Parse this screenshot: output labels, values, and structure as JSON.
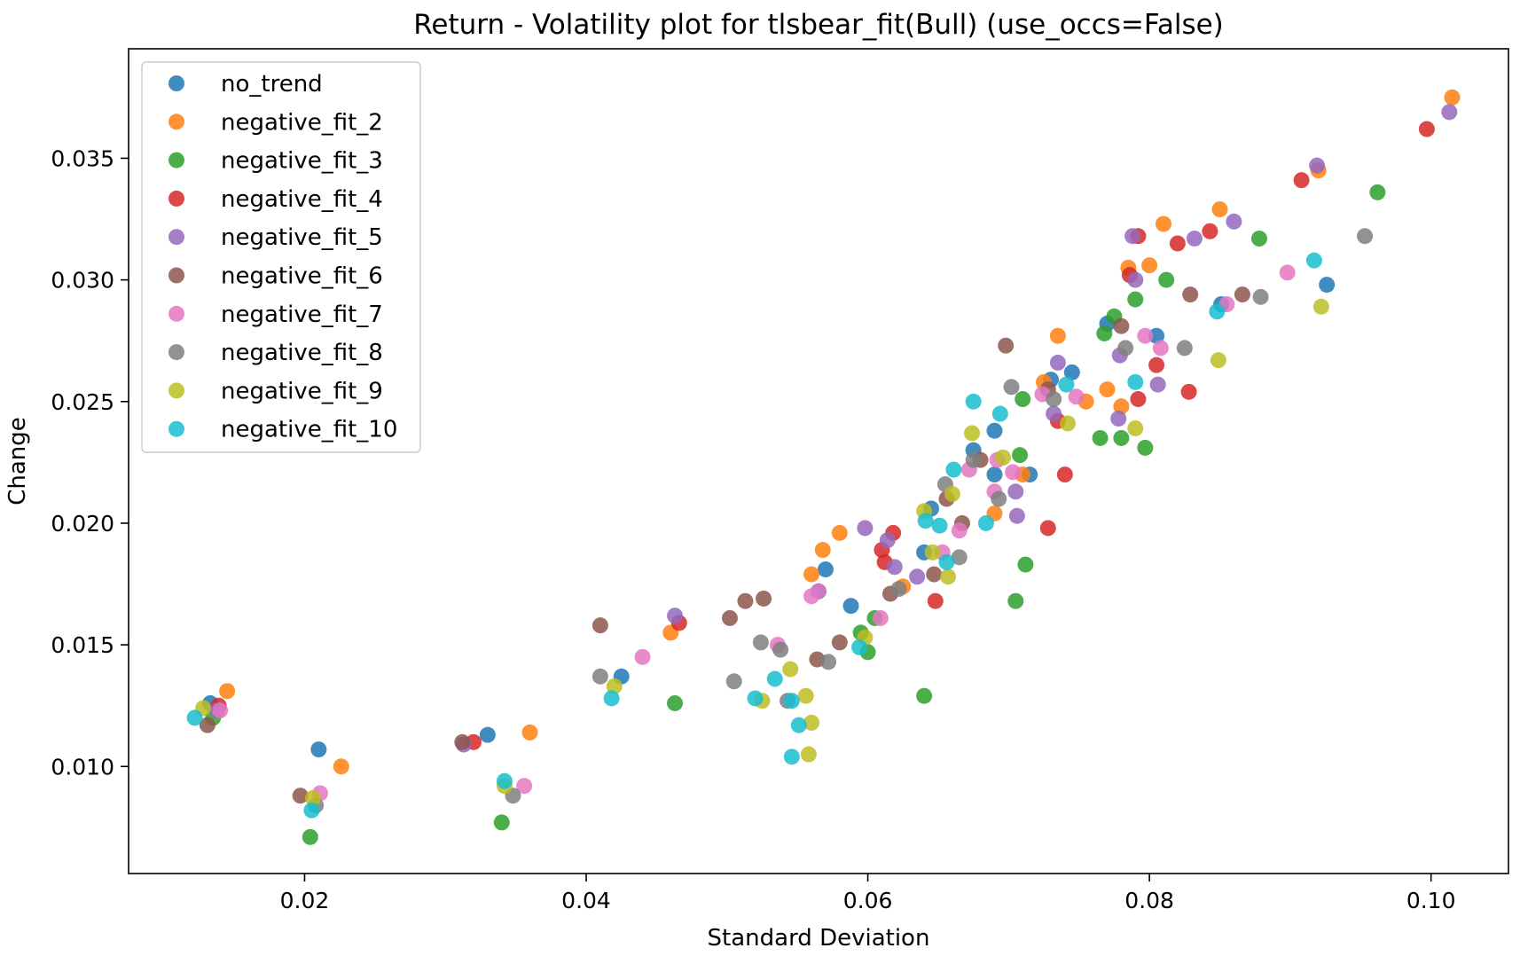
{
  "chart_data": {
    "type": "scatter",
    "title": "Return - Volatility plot for tlsbear_fit(Bull) (use_occs=False)",
    "xlabel": "Standard Deviation",
    "ylabel": "Change",
    "xlim": [
      0.0075,
      0.1055
    ],
    "ylim": [
      0.0056,
      0.0395
    ],
    "x_ticks": [
      0.02,
      0.04,
      0.06,
      0.08,
      0.1
    ],
    "x_tick_labels": [
      "0.02",
      "0.04",
      "0.06",
      "0.08",
      "0.10"
    ],
    "y_ticks": [
      0.01,
      0.015,
      0.02,
      0.025,
      0.03,
      0.035
    ],
    "y_tick_labels": [
      "0.010",
      "0.015",
      "0.020",
      "0.025",
      "0.030",
      "0.035"
    ],
    "grid": false,
    "legend_position": "upper-left",
    "series": [
      {
        "name": "no_trend",
        "color": "#1f77b4",
        "points": [
          [
            0.0133,
            0.0126
          ],
          [
            0.021,
            0.0107
          ],
          [
            0.033,
            0.0113
          ],
          [
            0.0425,
            0.0137
          ],
          [
            0.057,
            0.0181
          ],
          [
            0.0588,
            0.0166
          ],
          [
            0.0645,
            0.0206
          ],
          [
            0.0675,
            0.023
          ],
          [
            0.069,
            0.022
          ],
          [
            0.0715,
            0.022
          ],
          [
            0.073,
            0.0259
          ],
          [
            0.0745,
            0.0262
          ],
          [
            0.077,
            0.0282
          ],
          [
            0.0805,
            0.0277
          ],
          [
            0.0851,
            0.029
          ],
          [
            0.0926,
            0.0298
          ],
          [
            0.064,
            0.0188
          ],
          [
            0.069,
            0.0238
          ],
          [
            0.0565,
            0.0172
          ]
        ]
      },
      {
        "name": "negative_fit_2",
        "color": "#ff7f0e",
        "points": [
          [
            0.0145,
            0.0131
          ],
          [
            0.0226,
            0.01
          ],
          [
            0.036,
            0.0114
          ],
          [
            0.046,
            0.0155
          ],
          [
            0.056,
            0.0179
          ],
          [
            0.0568,
            0.0189
          ],
          [
            0.058,
            0.0196
          ],
          [
            0.0625,
            0.0174
          ],
          [
            0.069,
            0.0204
          ],
          [
            0.071,
            0.022
          ],
          [
            0.0725,
            0.0258
          ],
          [
            0.0735,
            0.0277
          ],
          [
            0.0755,
            0.025
          ],
          [
            0.077,
            0.0255
          ],
          [
            0.078,
            0.0248
          ],
          [
            0.0785,
            0.0305
          ],
          [
            0.08,
            0.0306
          ],
          [
            0.081,
            0.0323
          ],
          [
            0.085,
            0.0329
          ],
          [
            0.092,
            0.0345
          ],
          [
            0.1015,
            0.0375
          ]
        ]
      },
      {
        "name": "negative_fit_3",
        "color": "#2ca02c",
        "points": [
          [
            0.0135,
            0.012
          ],
          [
            0.0204,
            0.0071
          ],
          [
            0.034,
            0.0077
          ],
          [
            0.0463,
            0.0126
          ],
          [
            0.0605,
            0.0161
          ],
          [
            0.0595,
            0.0155
          ],
          [
            0.06,
            0.0147
          ],
          [
            0.064,
            0.0129
          ],
          [
            0.0705,
            0.0168
          ],
          [
            0.0712,
            0.0183
          ],
          [
            0.0708,
            0.0228
          ],
          [
            0.071,
            0.0251
          ],
          [
            0.0765,
            0.0235
          ],
          [
            0.0775,
            0.0285
          ],
          [
            0.078,
            0.0235
          ],
          [
            0.079,
            0.0292
          ],
          [
            0.0797,
            0.0231
          ],
          [
            0.0812,
            0.03
          ],
          [
            0.0878,
            0.0317
          ],
          [
            0.0962,
            0.0336
          ],
          [
            0.0768,
            0.0278
          ]
        ]
      },
      {
        "name": "negative_fit_4",
        "color": "#d62728",
        "points": [
          [
            0.0139,
            0.0125
          ],
          [
            0.032,
            0.011
          ],
          [
            0.0466,
            0.0159
          ],
          [
            0.061,
            0.0189
          ],
          [
            0.0618,
            0.0196
          ],
          [
            0.0612,
            0.0184
          ],
          [
            0.0648,
            0.0168
          ],
          [
            0.0728,
            0.0198
          ],
          [
            0.0735,
            0.0242
          ],
          [
            0.074,
            0.022
          ],
          [
            0.0786,
            0.0302
          ],
          [
            0.0792,
            0.0251
          ],
          [
            0.0792,
            0.0318
          ],
          [
            0.0805,
            0.0265
          ],
          [
            0.082,
            0.0315
          ],
          [
            0.0828,
            0.0254
          ],
          [
            0.0843,
            0.032
          ],
          [
            0.0908,
            0.0341
          ],
          [
            0.0997,
            0.0362
          ]
        ]
      },
      {
        "name": "negative_fit_5",
        "color": "#9467bd",
        "points": [
          [
            0.0138,
            0.0123
          ],
          [
            0.0313,
            0.0109
          ],
          [
            0.0463,
            0.0162
          ],
          [
            0.0598,
            0.0198
          ],
          [
            0.0614,
            0.0193
          ],
          [
            0.0619,
            0.0182
          ],
          [
            0.0635,
            0.0178
          ],
          [
            0.0705,
            0.0213
          ],
          [
            0.0706,
            0.0203
          ],
          [
            0.0732,
            0.0245
          ],
          [
            0.0735,
            0.0266
          ],
          [
            0.0778,
            0.0243
          ],
          [
            0.0779,
            0.0269
          ],
          [
            0.0788,
            0.0318
          ],
          [
            0.079,
            0.03
          ],
          [
            0.0806,
            0.0257
          ],
          [
            0.0832,
            0.0317
          ],
          [
            0.086,
            0.0324
          ],
          [
            0.0919,
            0.0347
          ],
          [
            0.1013,
            0.0369
          ]
        ]
      },
      {
        "name": "negative_fit_6",
        "color": "#8c564b",
        "points": [
          [
            0.0131,
            0.0117
          ],
          [
            0.0197,
            0.0088
          ],
          [
            0.0312,
            0.011
          ],
          [
            0.041,
            0.0158
          ],
          [
            0.0502,
            0.0161
          ],
          [
            0.0513,
            0.0168
          ],
          [
            0.0526,
            0.0169
          ],
          [
            0.0564,
            0.0144
          ],
          [
            0.058,
            0.0151
          ],
          [
            0.0616,
            0.0171
          ],
          [
            0.0647,
            0.0179
          ],
          [
            0.0656,
            0.021
          ],
          [
            0.0667,
            0.02
          ],
          [
            0.068,
            0.0226
          ],
          [
            0.0698,
            0.0273
          ],
          [
            0.0728,
            0.0255
          ],
          [
            0.078,
            0.0281
          ],
          [
            0.0829,
            0.0294
          ],
          [
            0.0866,
            0.0294
          ]
        ]
      },
      {
        "name": "negative_fit_7",
        "color": "#e377c2",
        "points": [
          [
            0.014,
            0.0123
          ],
          [
            0.0211,
            0.0089
          ],
          [
            0.0356,
            0.0092
          ],
          [
            0.044,
            0.0145
          ],
          [
            0.0536,
            0.015
          ],
          [
            0.056,
            0.017
          ],
          [
            0.0565,
            0.0172
          ],
          [
            0.0609,
            0.0161
          ],
          [
            0.0653,
            0.0188
          ],
          [
            0.0665,
            0.0197
          ],
          [
            0.0672,
            0.0222
          ],
          [
            0.069,
            0.0213
          ],
          [
            0.0692,
            0.0226
          ],
          [
            0.0703,
            0.0221
          ],
          [
            0.0724,
            0.0253
          ],
          [
            0.0748,
            0.0252
          ],
          [
            0.0797,
            0.0277
          ],
          [
            0.0808,
            0.0272
          ],
          [
            0.0855,
            0.029
          ],
          [
            0.0898,
            0.0303
          ]
        ]
      },
      {
        "name": "negative_fit_8",
        "color": "#7f7f7f",
        "points": [
          [
            0.0208,
            0.0084
          ],
          [
            0.0348,
            0.0088
          ],
          [
            0.041,
            0.0137
          ],
          [
            0.0505,
            0.0135
          ],
          [
            0.0524,
            0.0151
          ],
          [
            0.0538,
            0.0148
          ],
          [
            0.0543,
            0.0127
          ],
          [
            0.0572,
            0.0143
          ],
          [
            0.0622,
            0.0173
          ],
          [
            0.0655,
            0.0216
          ],
          [
            0.0665,
            0.0186
          ],
          [
            0.0675,
            0.0226
          ],
          [
            0.0693,
            0.021
          ],
          [
            0.0702,
            0.0256
          ],
          [
            0.0732,
            0.0251
          ],
          [
            0.0783,
            0.0272
          ],
          [
            0.0825,
            0.0272
          ],
          [
            0.0879,
            0.0293
          ],
          [
            0.0953,
            0.0318
          ]
        ]
      },
      {
        "name": "negative_fit_9",
        "color": "#bcbd22",
        "points": [
          [
            0.0128,
            0.0124
          ],
          [
            0.0206,
            0.0087
          ],
          [
            0.0342,
            0.0092
          ],
          [
            0.042,
            0.0133
          ],
          [
            0.0525,
            0.0127
          ],
          [
            0.0545,
            0.014
          ],
          [
            0.0556,
            0.0129
          ],
          [
            0.0558,
            0.0105
          ],
          [
            0.056,
            0.0118
          ],
          [
            0.0598,
            0.0153
          ],
          [
            0.064,
            0.0205
          ],
          [
            0.0646,
            0.0188
          ],
          [
            0.0657,
            0.0178
          ],
          [
            0.066,
            0.0212
          ],
          [
            0.0674,
            0.0237
          ],
          [
            0.0696,
            0.0227
          ],
          [
            0.0742,
            0.0241
          ],
          [
            0.079,
            0.0239
          ],
          [
            0.0849,
            0.0267
          ],
          [
            0.0922,
            0.0289
          ]
        ]
      },
      {
        "name": "negative_fit_10",
        "color": "#17becf",
        "points": [
          [
            0.0122,
            0.012
          ],
          [
            0.0205,
            0.0082
          ],
          [
            0.0342,
            0.0094
          ],
          [
            0.0418,
            0.0128
          ],
          [
            0.052,
            0.0128
          ],
          [
            0.0534,
            0.0136
          ],
          [
            0.0546,
            0.0127
          ],
          [
            0.0546,
            0.0104
          ],
          [
            0.0551,
            0.0117
          ],
          [
            0.0594,
            0.0149
          ],
          [
            0.0641,
            0.0201
          ],
          [
            0.0651,
            0.0199
          ],
          [
            0.0656,
            0.0184
          ],
          [
            0.0661,
            0.0222
          ],
          [
            0.0675,
            0.025
          ],
          [
            0.0684,
            0.02
          ],
          [
            0.0694,
            0.0245
          ],
          [
            0.0741,
            0.0257
          ],
          [
            0.079,
            0.0258
          ],
          [
            0.0848,
            0.0287
          ],
          [
            0.0917,
            0.0308
          ]
        ]
      }
    ]
  }
}
